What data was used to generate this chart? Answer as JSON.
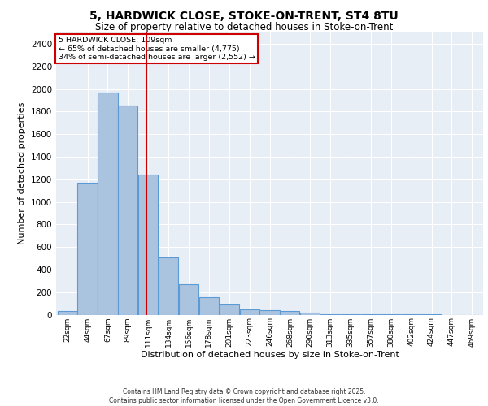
{
  "title": "5, HARDWICK CLOSE, STOKE-ON-TRENT, ST4 8TU",
  "subtitle": "Size of property relative to detached houses in Stoke-on-Trent",
  "xlabel": "Distribution of detached houses by size in Stoke-on-Trent",
  "ylabel": "Number of detached properties",
  "bar_labels": [
    "22sqm",
    "44sqm",
    "67sqm",
    "89sqm",
    "111sqm",
    "134sqm",
    "156sqm",
    "178sqm",
    "201sqm",
    "223sqm",
    "246sqm",
    "268sqm",
    "290sqm",
    "313sqm",
    "335sqm",
    "357sqm",
    "380sqm",
    "402sqm",
    "424sqm",
    "447sqm",
    "469sqm"
  ],
  "bar_values": [
    30,
    1170,
    1970,
    1850,
    1240,
    510,
    270,
    155,
    90,
    48,
    40,
    30,
    18,
    5,
    5,
    2,
    2,
    2,
    2,
    0,
    0
  ],
  "bar_color": "#aac4e0",
  "bar_edge_color": "#5b9bd5",
  "ylim": [
    0,
    2500
  ],
  "yticks": [
    0,
    200,
    400,
    600,
    800,
    1000,
    1200,
    1400,
    1600,
    1800,
    2000,
    2200,
    2400
  ],
  "annotation_line1": "5 HARDWICK CLOSE: 109sqm",
  "annotation_line2": "← 65% of detached houses are smaller (4,775)",
  "annotation_line3": "34% of semi-detached houses are larger (2,552) →",
  "annotation_box_color": "#cc0000",
  "bg_color": "#e8eef6",
  "footer_line1": "Contains HM Land Registry data © Crown copyright and database right 2025.",
  "footer_line2": "Contains public sector information licensed under the Open Government Licence v3.0.",
  "bin_centers": [
    22,
    44,
    67,
    89,
    111,
    134,
    156,
    178,
    201,
    223,
    246,
    268,
    290,
    313,
    335,
    357,
    380,
    402,
    424,
    447,
    469
  ],
  "property_sqm": 109
}
